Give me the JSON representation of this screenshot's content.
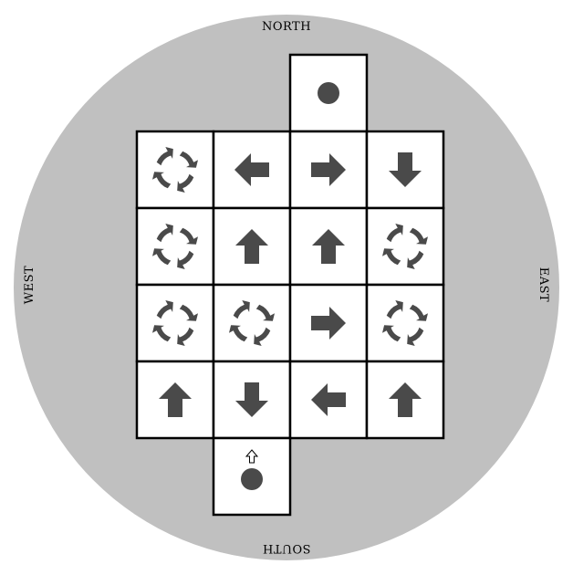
{
  "compass": {
    "north": "NORTH",
    "south": "SOUTH",
    "east": "EAST",
    "west": "WEST"
  },
  "colors": {
    "background_disc": "#c0c0c0",
    "tile": "#ffffff",
    "glyph": "#4a4a4a",
    "border": "#000000"
  },
  "board": {
    "cols": 4,
    "rows": 6,
    "cells": [
      {
        "row": 0,
        "col": 2,
        "type": "goal"
      },
      {
        "row": 1,
        "col": 0,
        "type": "rotate"
      },
      {
        "row": 1,
        "col": 1,
        "type": "arrow-left"
      },
      {
        "row": 1,
        "col": 2,
        "type": "arrow-right"
      },
      {
        "row": 1,
        "col": 3,
        "type": "arrow-down"
      },
      {
        "row": 2,
        "col": 0,
        "type": "rotate"
      },
      {
        "row": 2,
        "col": 1,
        "type": "arrow-up"
      },
      {
        "row": 2,
        "col": 2,
        "type": "arrow-up"
      },
      {
        "row": 2,
        "col": 3,
        "type": "rotate"
      },
      {
        "row": 3,
        "col": 0,
        "type": "rotate"
      },
      {
        "row": 3,
        "col": 1,
        "type": "rotate"
      },
      {
        "row": 3,
        "col": 2,
        "type": "arrow-right"
      },
      {
        "row": 3,
        "col": 3,
        "type": "rotate"
      },
      {
        "row": 4,
        "col": 0,
        "type": "arrow-up"
      },
      {
        "row": 4,
        "col": 1,
        "type": "arrow-down"
      },
      {
        "row": 4,
        "col": 2,
        "type": "arrow-left"
      },
      {
        "row": 4,
        "col": 3,
        "type": "arrow-up"
      },
      {
        "row": 5,
        "col": 1,
        "type": "start",
        "facing": "up"
      }
    ]
  }
}
